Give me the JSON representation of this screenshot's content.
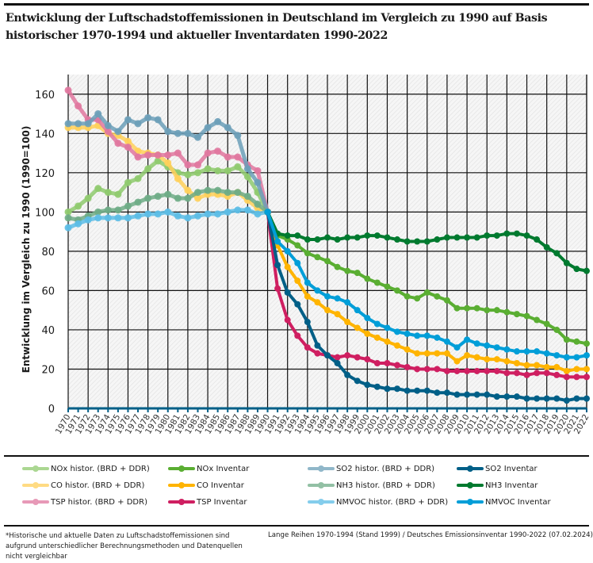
{
  "title": "Entwicklung der Luftschadstoffemissionen in Deutschland im Vergleich zu 1990 auf Basis historischer 1970-1994 und aktueller Inventardaten 1990-2022",
  "chart_data": {
    "type": "line",
    "title": "Entwicklung der Luftschadstoffemissionen in Deutschland im Vergleich zu 1990 auf Basis historischer 1970-1994 und aktueller Inventardaten 1990-2022",
    "xlabel": "",
    "ylabel": "Entwicklung im Vergleich zu 1990 (1990=100)",
    "ylim": [
      0,
      170
    ],
    "yticks": [
      0,
      20,
      40,
      60,
      80,
      100,
      120,
      140,
      160
    ],
    "xlim": [
      1970,
      2022
    ],
    "grid": true,
    "legend_position": "bottom",
    "series": [
      {
        "name": "NOx histor. (BRD + DDR)",
        "color": "#8fca6e",
        "kind": "historic",
        "start": 1970,
        "values": [
          100,
          103,
          107,
          112,
          110,
          109,
          115,
          117,
          122,
          126,
          123,
          120,
          119,
          120,
          122,
          121,
          121,
          123,
          118,
          110,
          100
        ]
      },
      {
        "name": "NOx Inventar",
        "color": "#5aae32",
        "kind": "inventory",
        "start": 1990,
        "values": [
          100,
          88,
          86,
          83,
          79,
          77,
          75,
          72,
          70,
          69,
          66,
          64,
          62,
          60,
          57,
          56,
          59,
          57,
          55,
          51,
          51,
          51,
          50,
          50,
          49,
          48,
          47,
          45,
          43,
          40,
          35,
          34,
          33
        ]
      },
      {
        "name": "CO histor. (BRD + DDR)",
        "color": "#ffd05a",
        "kind": "historic",
        "start": 1970,
        "values": [
          143,
          143,
          143,
          144,
          140,
          139,
          136,
          131,
          130,
          129,
          125,
          117,
          111,
          107,
          109,
          109,
          108,
          110,
          106,
          102,
          100
        ]
      },
      {
        "name": "CO Inventar",
        "color": "#ffb400",
        "kind": "inventory",
        "start": 1990,
        "values": [
          100,
          83,
          72,
          65,
          57,
          54,
          50,
          48,
          44,
          41,
          38,
          36,
          34,
          32,
          30,
          28,
          28,
          28,
          28,
          24,
          27,
          26,
          25,
          25,
          24,
          23,
          22,
          22,
          21,
          21,
          19,
          20,
          20
        ]
      },
      {
        "name": "TSP histor. (BRD + DDR)",
        "color": "#e0779f",
        "kind": "historic",
        "start": 1970,
        "values": [
          162,
          154,
          147,
          147,
          141,
          135,
          133,
          128,
          129,
          129,
          129,
          130,
          124,
          124,
          130,
          131,
          128,
          128,
          124,
          121,
          100
        ]
      },
      {
        "name": "TSP Inventar",
        "color": "#cf1f61",
        "kind": "inventory",
        "start": 1990,
        "values": [
          100,
          61,
          45,
          37,
          31,
          28,
          27,
          26,
          27,
          26,
          25,
          23,
          23,
          22,
          21,
          20,
          20,
          20,
          19,
          19,
          19,
          19,
          19,
          19,
          18,
          18,
          17,
          18,
          18,
          17,
          16,
          16,
          16
        ]
      },
      {
        "name": "SO2 histor. (BRD + DDR)",
        "color": "#6b9fb8",
        "kind": "historic",
        "start": 1970,
        "values": [
          145,
          145,
          145,
          150,
          144,
          141,
          147,
          145,
          148,
          147,
          141,
          140,
          140,
          138,
          143,
          146,
          143,
          139,
          122,
          115,
          100
        ]
      },
      {
        "name": "SO2 Inventar",
        "color": "#005f87",
        "kind": "inventory",
        "start": 1990,
        "values": [
          100,
          73,
          59,
          53,
          44,
          32,
          27,
          23,
          17,
          14,
          12,
          11,
          10,
          10,
          9,
          9,
          9,
          8,
          8,
          7,
          7,
          7,
          7,
          6,
          6,
          6,
          5,
          5,
          5,
          5,
          4,
          5,
          5
        ]
      },
      {
        "name": "NH3 histor. (BRD + DDR)",
        "color": "#6eac86",
        "kind": "historic",
        "start": 1970,
        "values": [
          97,
          96,
          98,
          100,
          101,
          101,
          103,
          105,
          107,
          108,
          109,
          107,
          107,
          110,
          111,
          111,
          110,
          110,
          108,
          104,
          100
        ]
      },
      {
        "name": "NH3 Inventar",
        "color": "#007a2f",
        "kind": "inventory",
        "start": 1990,
        "values": [
          100,
          89,
          88,
          88,
          86,
          86,
          87,
          86,
          87,
          87,
          88,
          88,
          87,
          86,
          85,
          85,
          85,
          86,
          87,
          87,
          87,
          87,
          88,
          88,
          89,
          89,
          88,
          86,
          82,
          79,
          74,
          71,
          70
        ]
      },
      {
        "name": "NMVOC histor. (BRD + DDR)",
        "color": "#5cbde6",
        "kind": "historic",
        "start": 1970,
        "values": [
          92,
          94,
          96,
          97,
          97,
          97,
          97,
          98,
          99,
          99,
          100,
          98,
          97,
          98,
          99,
          99,
          100,
          101,
          101,
          99,
          100
        ]
      },
      {
        "name": "NMVOC Inventar",
        "color": "#009ed8",
        "kind": "inventory",
        "start": 1990,
        "values": [
          100,
          85,
          80,
          74,
          64,
          60,
          57,
          56,
          54,
          50,
          46,
          43,
          41,
          39,
          38,
          37,
          37,
          36,
          34,
          31,
          35,
          33,
          32,
          31,
          30,
          29,
          29,
          29,
          28,
          27,
          26,
          26,
          27
        ]
      }
    ]
  },
  "legend": [
    [
      "NOx histor. (BRD + DDR)",
      "NOx Inventar",
      "SO2 histor. (BRD + DDR)",
      "SO2 Inventar"
    ],
    [
      "CO histor. (BRD + DDR)",
      "CO Inventar",
      "NH3 histor. (BRD + DDR)",
      "NH3 Inventar"
    ],
    [
      "TSP histor. (BRD + DDR)",
      "TSP Inventar",
      "NMVOC histor. (BRD + DDR)",
      "NMVOC Inventar"
    ]
  ],
  "footer": {
    "note": "*Historische und aktuelle Daten zu Luftschadstoffemissionen sind aufgrund unterschiedlicher Berechnungsmethoden und Datenquellen nicht vergleichbar",
    "source": "Lange Reihen 1970-1994 (Stand 1999) / Deutsches Emissionsinventar 1990-2022  (07.02.2024)"
  }
}
